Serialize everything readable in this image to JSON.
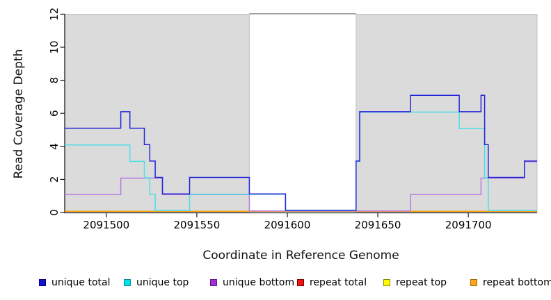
{
  "chart_data": {
    "type": "line",
    "step": "post",
    "title": "",
    "xlabel": "Coordinate in Reference Genome",
    "ylabel": "Read Coverage Depth",
    "xlim": [
      2091477,
      2091738
    ],
    "ylim": [
      0,
      12
    ],
    "xticks": [
      2091500,
      2091550,
      2091600,
      2091650,
      2091700
    ],
    "yticks": [
      0,
      2,
      4,
      6,
      8,
      10,
      12
    ],
    "grid": false,
    "legend_position": "bottom",
    "shade_color": "#DBDBDB",
    "shaded_regions": [
      {
        "x0": 2091477,
        "x1": 2091579
      },
      {
        "x0": 2091638,
        "x1": 2091738
      }
    ],
    "gap_top_rule": {
      "x0": 2091579,
      "x1": 2091638,
      "y": 12,
      "color": "#8A8A8A"
    },
    "series": [
      {
        "name": "unique total",
        "color": "#2323DA",
        "steps": [
          [
            2091477,
            5
          ],
          [
            2091508,
            6
          ],
          [
            2091513,
            5
          ],
          [
            2091521,
            4
          ],
          [
            2091524,
            3
          ],
          [
            2091527,
            2
          ],
          [
            2091531,
            1
          ],
          [
            2091546,
            2
          ],
          [
            2091579,
            1
          ],
          [
            2091599,
            0
          ],
          [
            2091638,
            3
          ],
          [
            2091640,
            6
          ],
          [
            2091668,
            7
          ],
          [
            2091695,
            6
          ],
          [
            2091707,
            7
          ],
          [
            2091709,
            4
          ],
          [
            2091711,
            2
          ],
          [
            2091731,
            3
          ],
          [
            2091738,
            3
          ]
        ]
      },
      {
        "name": "unique top",
        "color": "#4DDEE6",
        "steps": [
          [
            2091477,
            4
          ],
          [
            2091513,
            3
          ],
          [
            2091521,
            2
          ],
          [
            2091524,
            1
          ],
          [
            2091527,
            0
          ],
          [
            2091546,
            1
          ],
          [
            2091599,
            0
          ],
          [
            2091638,
            3
          ],
          [
            2091640,
            6
          ],
          [
            2091695,
            5
          ],
          [
            2091709,
            2
          ],
          [
            2091711,
            0
          ],
          [
            2091738,
            0
          ]
        ]
      },
      {
        "name": "unique bottom",
        "color": "#B97ADF",
        "steps": [
          [
            2091477,
            1
          ],
          [
            2091508,
            2
          ],
          [
            2091531,
            1
          ],
          [
            2091579,
            0
          ],
          [
            2091668,
            1
          ],
          [
            2091707,
            2
          ],
          [
            2091731,
            3
          ],
          [
            2091738,
            3
          ]
        ]
      },
      {
        "name": "repeat total",
        "color": "#E03030",
        "steps": [
          [
            2091477,
            0
          ],
          [
            2091738,
            0
          ]
        ]
      },
      {
        "name": "repeat top",
        "color": "#F0F000",
        "steps": [
          [
            2091477,
            0
          ],
          [
            2091738,
            0
          ]
        ]
      },
      {
        "name": "repeat bottom",
        "color": "#FF9E00",
        "steps": [
          [
            2091477,
            0
          ],
          [
            2091738,
            0
          ]
        ]
      }
    ]
  },
  "legend": {
    "items": [
      {
        "label": "unique total",
        "color": "#1111CF",
        "border": "#000080"
      },
      {
        "label": "unique top",
        "color": "#00E1ED",
        "border": "#0A8A93"
      },
      {
        "label": "unique bottom",
        "color": "#A02FD6",
        "border": "#62138F"
      },
      {
        "label": "repeat total",
        "color": "#F51212",
        "border": "#7A0000"
      },
      {
        "label": "repeat top",
        "color": "#FAFA00",
        "border": "#8C8C00"
      },
      {
        "label": "repeat bottom",
        "color": "#FFA41C",
        "border": "#9E6A00"
      }
    ]
  }
}
